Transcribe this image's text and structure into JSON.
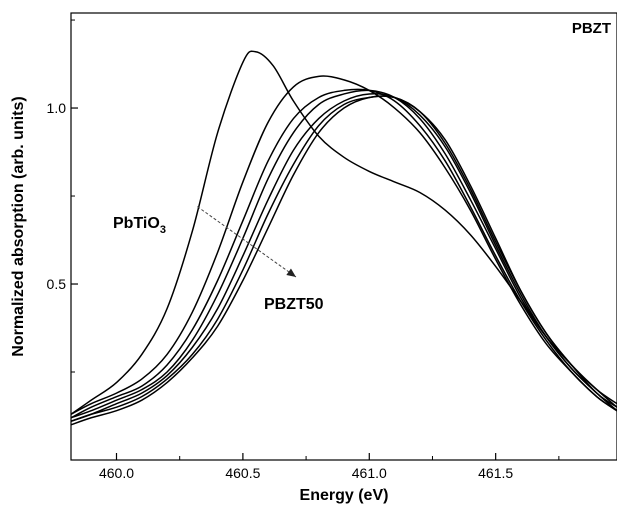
{
  "chart_data": {
    "type": "line",
    "panel_label": "PBZT",
    "xlabel": "Energy (eV)",
    "ylabel": "Normalized absorption (arb. units)",
    "xlim": [
      459.82,
      461.98
    ],
    "ylim": [
      0.0,
      1.27
    ],
    "x_ticks": [
      460.0,
      460.5,
      461.0,
      461.5
    ],
    "x_tick_labels": [
      "460.0",
      "460.5",
      "461.0",
      "461.5"
    ],
    "y_ticks": [
      0.5,
      1.0
    ],
    "y_tick_labels": [
      "0.5",
      "1.0"
    ],
    "grid": false,
    "annotations": {
      "start_label": "PbTiO",
      "start_subscript": "3",
      "end_label": "PBZT50",
      "arrow": {
        "from": [
          460.32,
          0.72
        ],
        "to": [
          460.71,
          0.52
        ]
      }
    },
    "series": [
      {
        "x": [
          459.82,
          459.9,
          460.0,
          460.1,
          460.2,
          460.3,
          460.4,
          460.5,
          460.55,
          460.62,
          460.7,
          460.8,
          460.9,
          461.0,
          461.1,
          461.2,
          461.3,
          461.4,
          461.5,
          461.6,
          461.7,
          461.8,
          461.9,
          461.98
        ],
        "values": [
          0.13,
          0.17,
          0.22,
          0.3,
          0.43,
          0.65,
          0.93,
          1.13,
          1.16,
          1.12,
          1.02,
          0.92,
          0.86,
          0.82,
          0.79,
          0.76,
          0.71,
          0.64,
          0.55,
          0.45,
          0.35,
          0.27,
          0.2,
          0.16
        ]
      },
      {
        "x": [
          459.82,
          459.9,
          460.0,
          460.1,
          460.2,
          460.3,
          460.4,
          460.5,
          460.6,
          460.7,
          460.8,
          460.9,
          461.0,
          461.1,
          461.2,
          461.3,
          461.4,
          461.5,
          461.6,
          461.7,
          461.8,
          461.9,
          461.98
        ],
        "values": [
          0.13,
          0.16,
          0.19,
          0.23,
          0.3,
          0.42,
          0.59,
          0.79,
          0.96,
          1.06,
          1.09,
          1.08,
          1.05,
          1.0,
          0.93,
          0.83,
          0.71,
          0.57,
          0.44,
          0.33,
          0.25,
          0.18,
          0.14
        ]
      },
      {
        "x": [
          459.82,
          459.9,
          460.0,
          460.1,
          460.2,
          460.3,
          460.4,
          460.5,
          460.6,
          460.7,
          460.8,
          460.9,
          461.0,
          461.1,
          461.2,
          461.3,
          461.4,
          461.5,
          461.6,
          461.7,
          461.8,
          461.9,
          461.98
        ],
        "values": [
          0.12,
          0.15,
          0.18,
          0.21,
          0.27,
          0.37,
          0.51,
          0.68,
          0.85,
          0.97,
          1.03,
          1.05,
          1.05,
          1.02,
          0.95,
          0.85,
          0.72,
          0.58,
          0.45,
          0.34,
          0.25,
          0.18,
          0.14
        ]
      },
      {
        "x": [
          459.82,
          459.9,
          460.0,
          460.1,
          460.2,
          460.3,
          460.4,
          460.5,
          460.6,
          460.7,
          460.8,
          460.9,
          461.0,
          461.1,
          461.2,
          461.3,
          461.4,
          461.5,
          461.6,
          461.7,
          461.8,
          461.9,
          461.98
        ],
        "values": [
          0.12,
          0.14,
          0.17,
          0.2,
          0.25,
          0.34,
          0.47,
          0.63,
          0.8,
          0.93,
          1.01,
          1.04,
          1.05,
          1.03,
          0.97,
          0.87,
          0.74,
          0.6,
          0.46,
          0.35,
          0.26,
          0.19,
          0.14
        ]
      },
      {
        "x": [
          459.82,
          459.9,
          460.0,
          460.1,
          460.2,
          460.3,
          460.4,
          460.5,
          460.6,
          460.7,
          460.8,
          460.9,
          461.0,
          461.1,
          461.2,
          461.3,
          461.4,
          461.5,
          461.6,
          461.7,
          461.8,
          461.9,
          461.98
        ],
        "values": [
          0.11,
          0.13,
          0.16,
          0.19,
          0.24,
          0.32,
          0.43,
          0.58,
          0.74,
          0.88,
          0.97,
          1.02,
          1.04,
          1.03,
          0.98,
          0.89,
          0.76,
          0.61,
          0.47,
          0.35,
          0.26,
          0.19,
          0.14
        ]
      },
      {
        "x": [
          459.82,
          459.9,
          460.0,
          460.1,
          460.2,
          460.3,
          460.4,
          460.5,
          460.6,
          460.7,
          460.8,
          460.9,
          461.0,
          461.1,
          461.2,
          461.3,
          461.4,
          461.5,
          461.6,
          461.7,
          461.8,
          461.9,
          461.98
        ],
        "values": [
          0.11,
          0.13,
          0.15,
          0.18,
          0.23,
          0.3,
          0.4,
          0.54,
          0.7,
          0.84,
          0.95,
          1.01,
          1.03,
          1.03,
          0.99,
          0.9,
          0.77,
          0.62,
          0.48,
          0.36,
          0.27,
          0.19,
          0.15
        ]
      },
      {
        "x": [
          459.82,
          459.9,
          460.0,
          460.1,
          460.2,
          460.3,
          460.4,
          460.5,
          460.6,
          460.7,
          460.8,
          460.9,
          461.0,
          461.1,
          461.2,
          461.3,
          461.4,
          461.5,
          461.6,
          461.7,
          461.8,
          461.9,
          461.98
        ],
        "values": [
          0.1,
          0.12,
          0.14,
          0.17,
          0.22,
          0.29,
          0.38,
          0.51,
          0.66,
          0.81,
          0.93,
          1.0,
          1.03,
          1.03,
          0.99,
          0.91,
          0.78,
          0.63,
          0.48,
          0.36,
          0.27,
          0.2,
          0.15
        ]
      }
    ]
  }
}
